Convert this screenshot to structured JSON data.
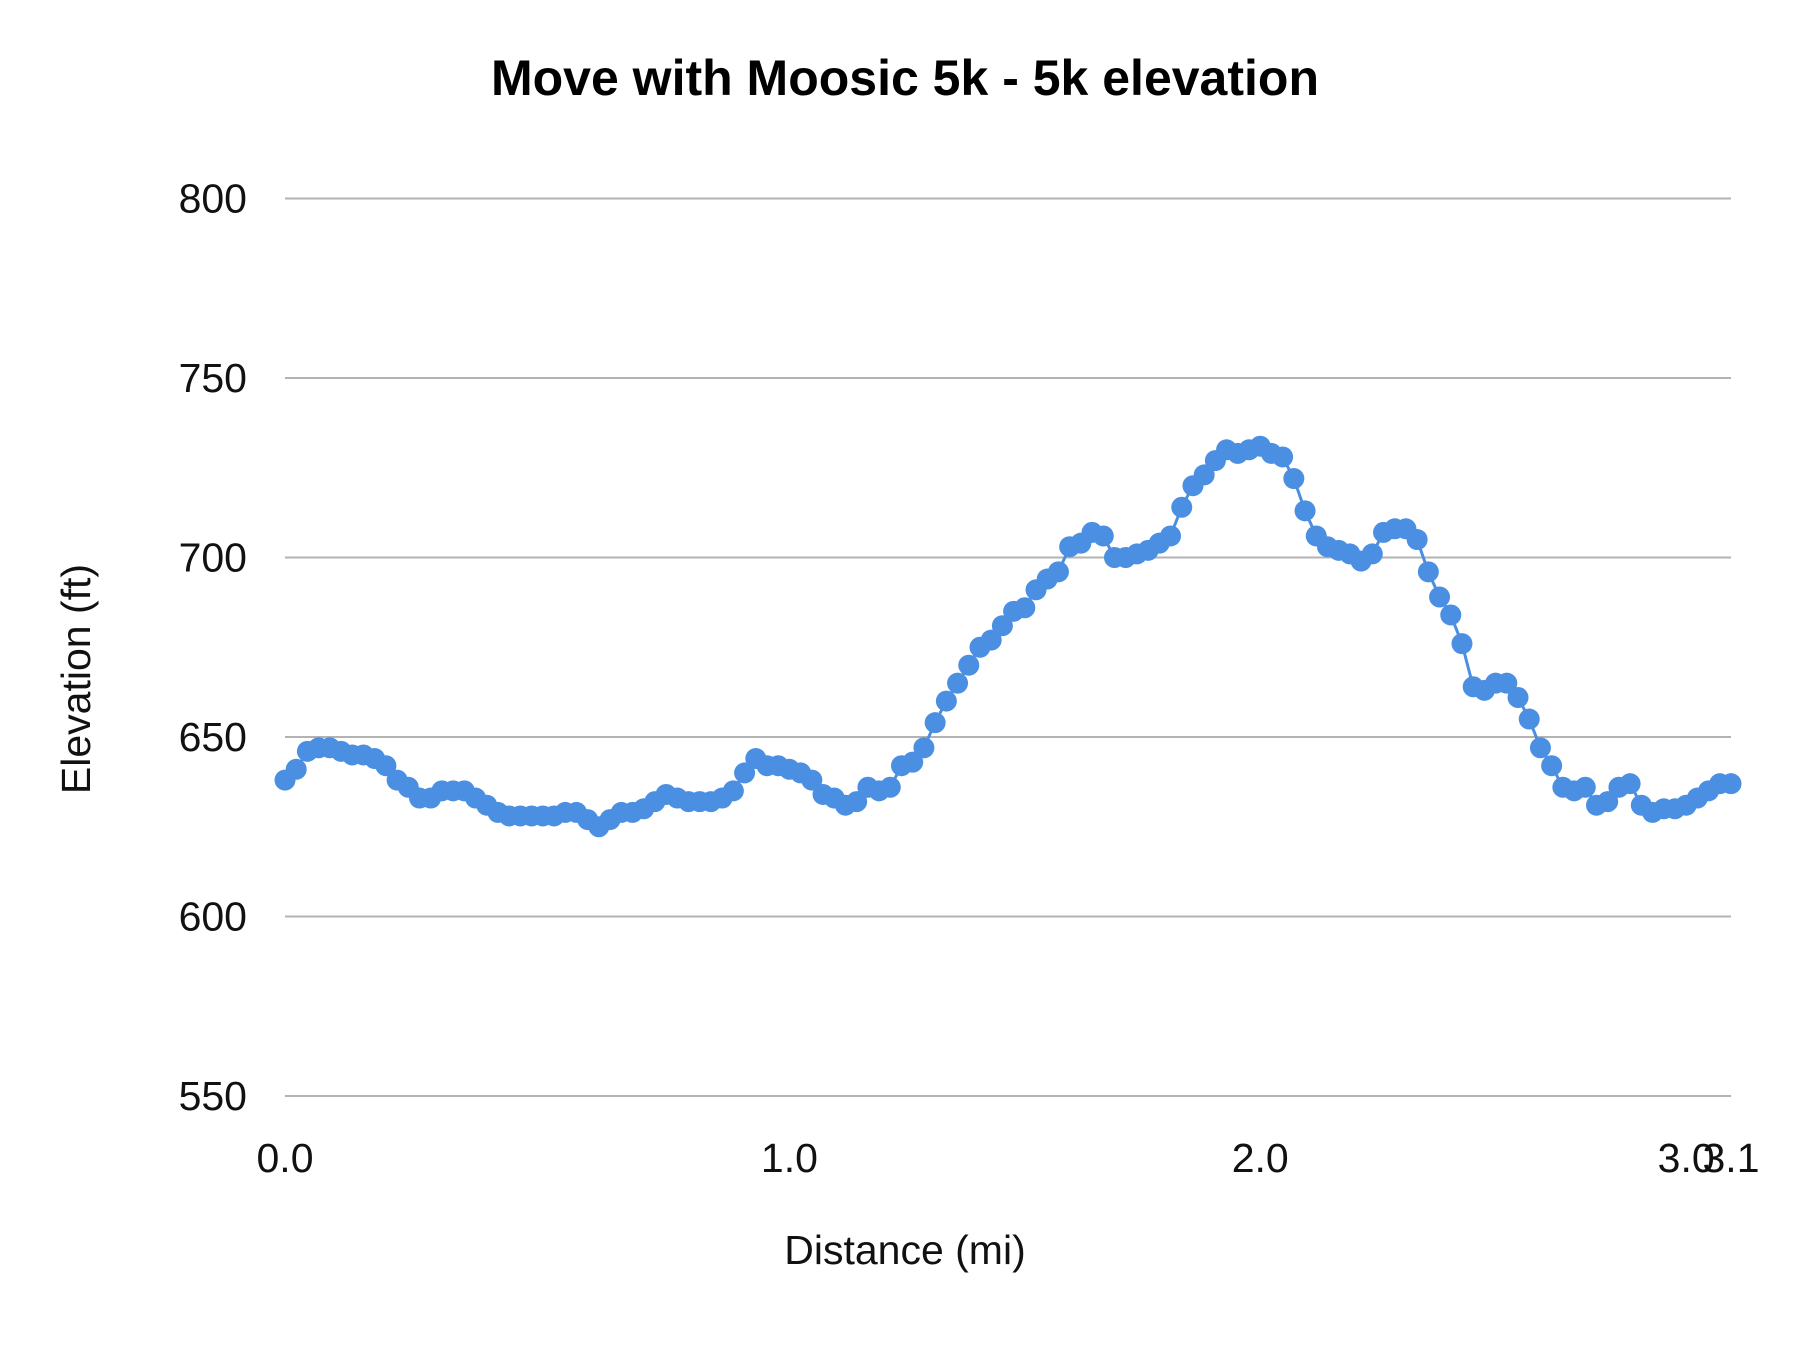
{
  "chart_data": {
    "type": "line",
    "title": "Move with Moosic 5k - 5k elevation",
    "xlabel": "Distance (mi)",
    "ylabel": "Elevation (ft)",
    "ylim": [
      550,
      800
    ],
    "y_ticks": [
      "550",
      "600",
      "650",
      "700",
      "750",
      "800"
    ],
    "x_tick_labels": [
      {
        "label": "0.0",
        "point": 0
      },
      {
        "label": "1.0",
        "point": 45
      },
      {
        "label": "2.0",
        "point": 87
      },
      {
        "label": "3.0",
        "point": 125
      },
      {
        "label": "3.1",
        "point": 129
      }
    ],
    "grid": "horizontal",
    "markers": true,
    "legend": "none",
    "series": [
      {
        "color": "#4a8fe1",
        "values": [
          638,
          641,
          646,
          647,
          647,
          646,
          645,
          645,
          644,
          642,
          638,
          636,
          633,
          633,
          635,
          635,
          635,
          633,
          631,
          629,
          628,
          628,
          628,
          628,
          628,
          629,
          629,
          627,
          625,
          627,
          629,
          629,
          630,
          632,
          634,
          633,
          632,
          632,
          632,
          633,
          635,
          640,
          644,
          642,
          642,
          641,
          640,
          638,
          634,
          633,
          631,
          632,
          636,
          635,
          636,
          642,
          643,
          647,
          654,
          660,
          665,
          670,
          675,
          677,
          681,
          685,
          686,
          691,
          694,
          696,
          703,
          704,
          707,
          706,
          700,
          700,
          701,
          702,
          704,
          706,
          714,
          720,
          723,
          727,
          730,
          729,
          730,
          731,
          729,
          728,
          722,
          713,
          706,
          703,
          702,
          701,
          699,
          701,
          707,
          708,
          708,
          705,
          696,
          689,
          684,
          676,
          664,
          663,
          665,
          665,
          661,
          655,
          647,
          642,
          636,
          635,
          636,
          631,
          632,
          636,
          637,
          631,
          629,
          630,
          630,
          631,
          633,
          635,
          637,
          637
        ]
      }
    ]
  },
  "colors": {
    "gridline": "#b3b3b3",
    "series": "#4a8fe1",
    "text": "#111111"
  }
}
